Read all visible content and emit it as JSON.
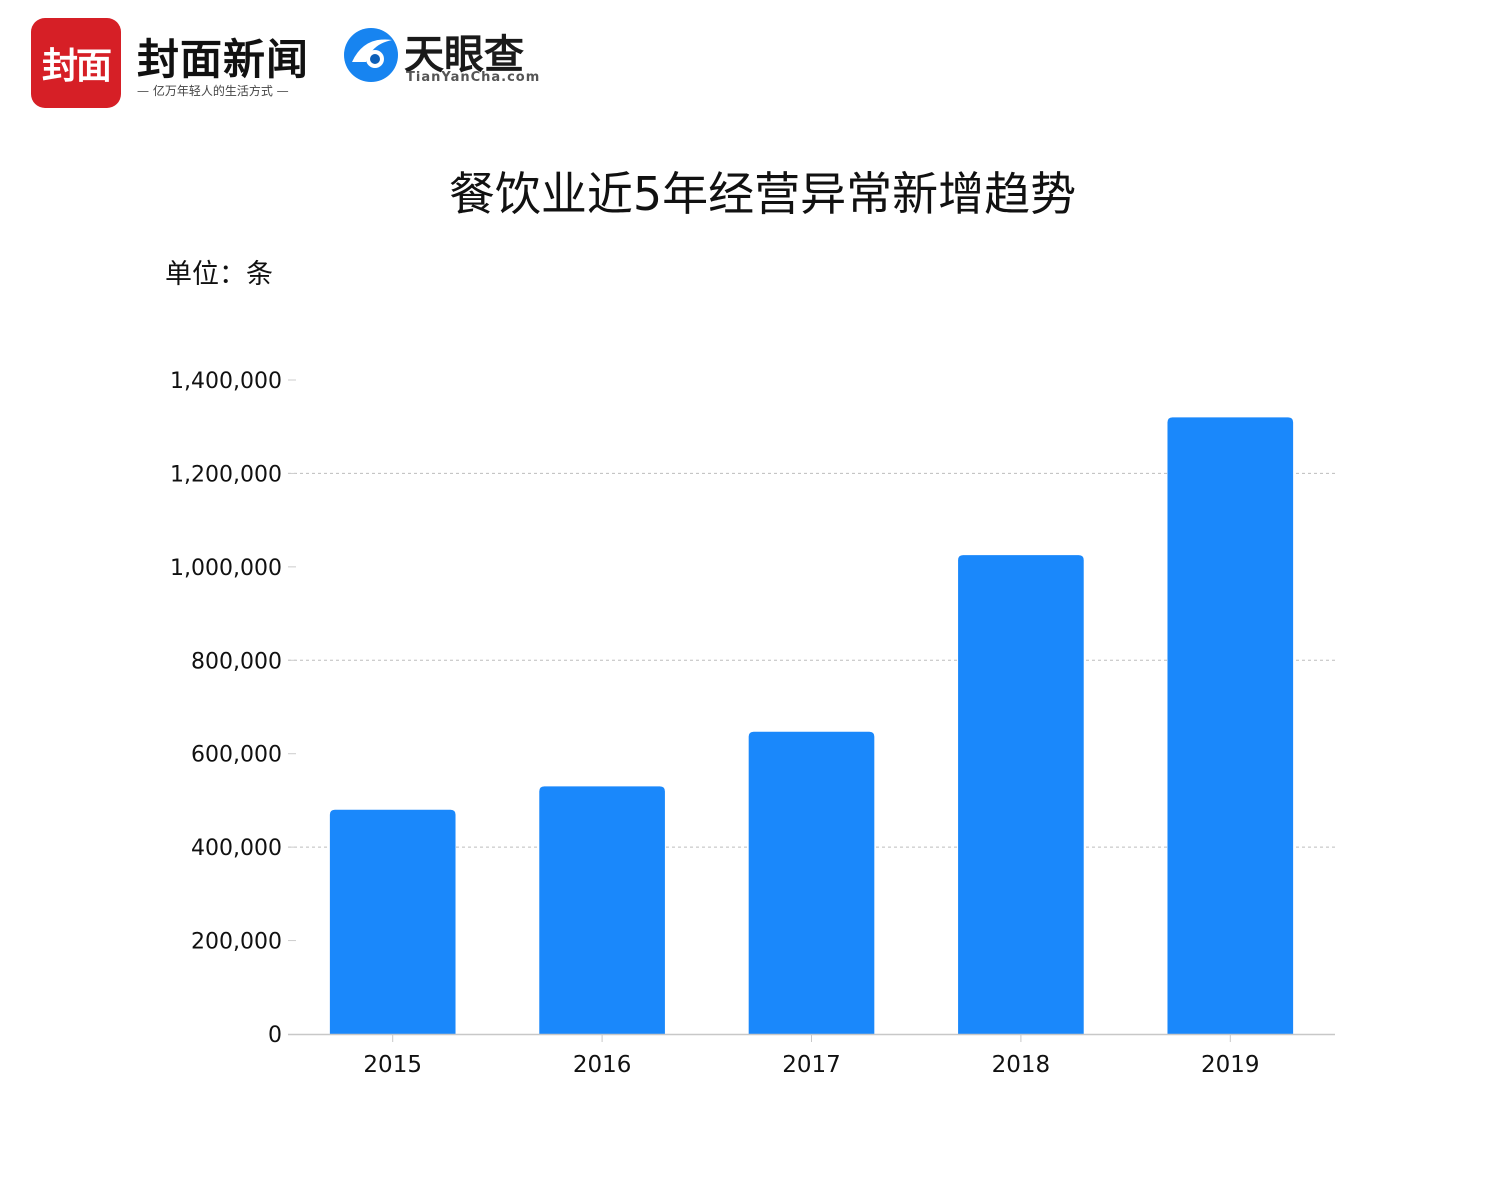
{
  "header": {
    "fengmian_logo_text": "封面",
    "fengmian_name": "封面新闻",
    "fengmian_slogan": "— 亿万年轻人的生活方式 —",
    "tianyancha_name": "天眼查",
    "tianyancha_domain": "TianYanCha.com",
    "colors": {
      "fengmian_red": "#d61f26",
      "tianyancha_blue": "#1784f0"
    }
  },
  "chart_data": {
    "type": "bar",
    "title": "餐饮业近5年经营异常新增趋势",
    "unit_label": "单位：条",
    "categories": [
      "2015",
      "2016",
      "2017",
      "2018",
      "2019"
    ],
    "values": [
      480000,
      530000,
      647000,
      1025000,
      1320000
    ],
    "ylim": [
      0,
      1400000
    ],
    "yticks": [
      0,
      200000,
      400000,
      600000,
      800000,
      1000000,
      1200000,
      1400000
    ],
    "ytick_labels": [
      "0",
      "200,000",
      "400,000",
      "600,000",
      "800,000",
      "1,000,000",
      "1,200,000",
      "1,400,000"
    ],
    "grid": "dashed horizontal",
    "bar_color": "#1a88fb",
    "legend": "none"
  }
}
